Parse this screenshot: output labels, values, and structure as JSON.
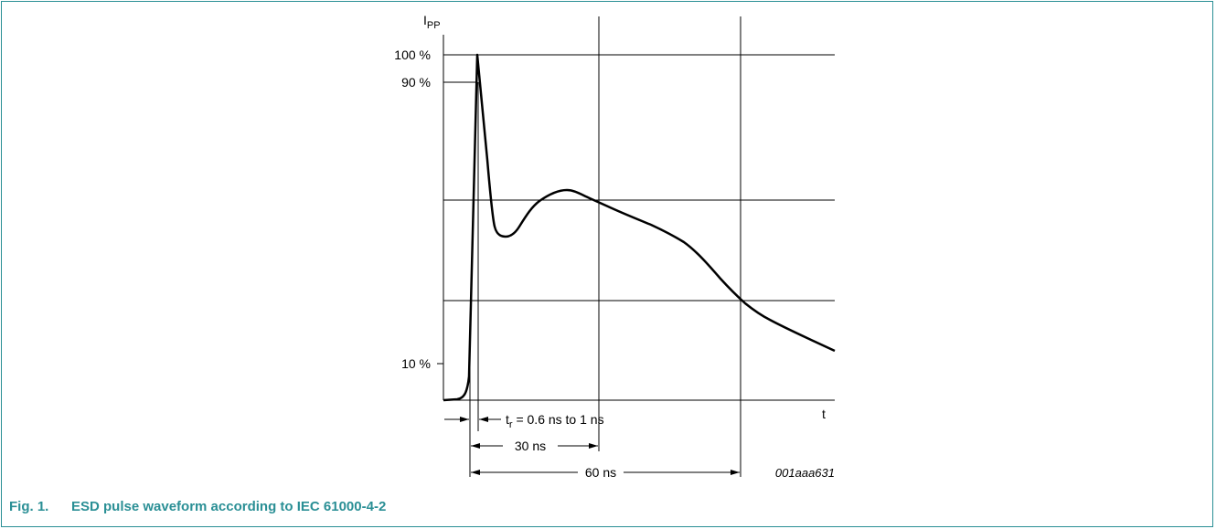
{
  "diagram": {
    "y_axis_label": "I",
    "y_axis_label_sub": "PP",
    "x_axis_label": "t",
    "y_ticks": [
      "100 %",
      "90 %",
      "10 %"
    ],
    "rise_time_label_prefix": "t",
    "rise_time_label_sub": "r",
    "rise_time_label": " = 0.6 ns to 1 ns",
    "interval_30": "30 ns",
    "interval_60": "60 ns",
    "drawing_code": "001aaa631"
  },
  "caption": {
    "number": "Fig. 1.",
    "text": "ESD pulse waveform according to IEC 61000-4-2"
  },
  "colors": {
    "frame": "#2a8f95",
    "caption": "#2a8f95",
    "lines": "#000000"
  }
}
